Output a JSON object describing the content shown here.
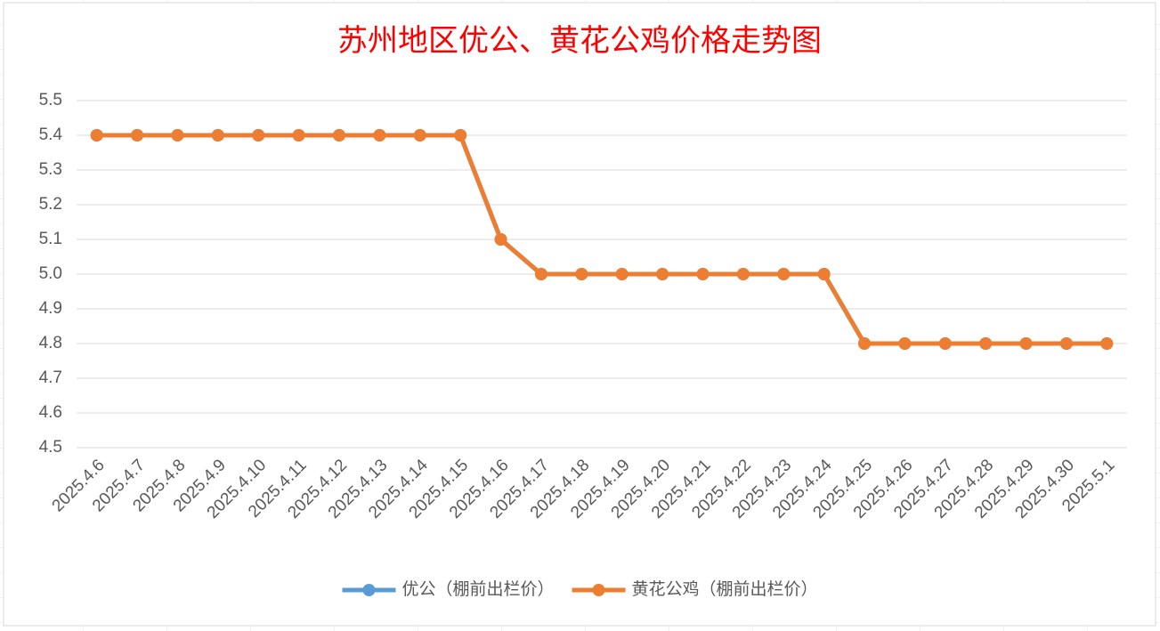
{
  "chart_data": {
    "type": "line",
    "title": "苏州地区优公、黄花公鸡价格走势图",
    "categories": [
      "2025.4.6",
      "2025.4.7",
      "2025.4.8",
      "2025.4.9",
      "2025.4.10",
      "2025.4.11",
      "2025.4.12",
      "2025.4.13",
      "2025.4.14",
      "2025.4.15",
      "2025.4.16",
      "2025.4.17",
      "2025.4.18",
      "2025.4.19",
      "2025.4.20",
      "2025.4.21",
      "2025.4.22",
      "2025.4.23",
      "2025.4.24",
      "2025.4.25",
      "2025.4.26",
      "2025.4.27",
      "2025.4.28",
      "2025.4.29",
      "2025.4.30",
      "2025.5.1"
    ],
    "series": [
      {
        "name": "优公（棚前出栏价）",
        "color": "#5b9bd5",
        "values": [
          5.4,
          5.4,
          5.4,
          5.4,
          5.4,
          5.4,
          5.4,
          5.4,
          5.4,
          5.4,
          5.1,
          5.0,
          5.0,
          5.0,
          5.0,
          5.0,
          5.0,
          5.0,
          5.0,
          4.8,
          4.8,
          4.8,
          4.8,
          4.8,
          4.8,
          4.8
        ]
      },
      {
        "name": "黄花公鸡（棚前出栏价）",
        "color": "#ed7d31",
        "values": [
          5.4,
          5.4,
          5.4,
          5.4,
          5.4,
          5.4,
          5.4,
          5.4,
          5.4,
          5.4,
          5.1,
          5.0,
          5.0,
          5.0,
          5.0,
          5.0,
          5.0,
          5.0,
          5.0,
          4.8,
          4.8,
          4.8,
          4.8,
          4.8,
          4.8,
          4.8
        ]
      }
    ],
    "ylim": [
      4.5,
      5.5
    ],
    "yticks": [
      4.5,
      4.6,
      4.7,
      4.8,
      4.9,
      {
        "value": 5,
        "label": "5.0"
      },
      5.1,
      5.2,
      5.3,
      5.4,
      5.5
    ],
    "grid": true,
    "legend": "bottom"
  }
}
